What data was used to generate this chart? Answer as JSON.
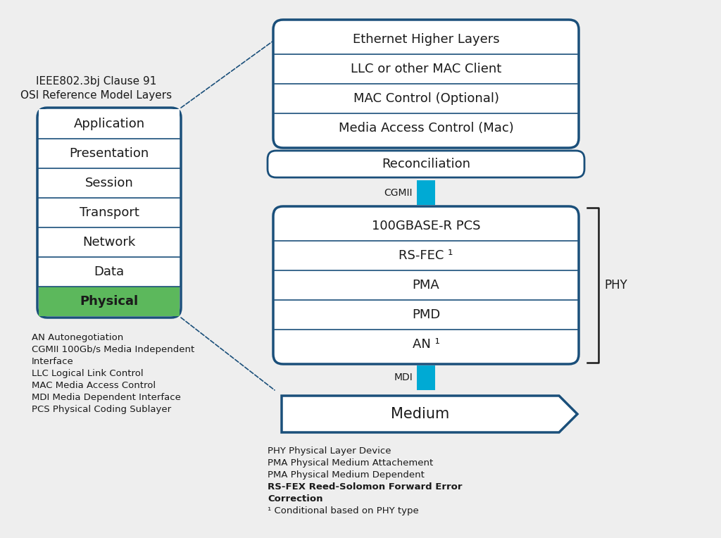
{
  "bg_color": "#eeeeee",
  "border_color": "#1a4f7a",
  "teal_color": "#00aad4",
  "green_color": "#5cb85c",
  "text_color": "#1a1a1a",
  "white": "#ffffff",
  "title_text": "IEEE802.3bj Clause 91\nOSI Reference Model Layers",
  "osi_layers_top_to_bottom": [
    "Application",
    "Presentation",
    "Session",
    "Transport",
    "Network",
    "Data",
    "Physical"
  ],
  "osi_layer_colors": [
    "#ffffff",
    "#ffffff",
    "#ffffff",
    "#ffffff",
    "#ffffff",
    "#ffffff",
    "#5cb85c"
  ],
  "top_box_layers_top_to_bottom": [
    "Ethernet Higher Layers",
    "LLC or other MAC Client",
    "MAC Control (Optional)",
    "Media Access Control (Mac)"
  ],
  "recon_label": "Reconciliation",
  "cgmii_label": "CGMII",
  "mdi_label": "MDI",
  "phy_inner_layers_top_to_bottom": [
    "100GBASE-R PCS",
    "RS-FEC ¹",
    "PMA",
    "PMD",
    "AN ¹"
  ],
  "phy_label": "PHY",
  "medium_label": "Medium",
  "left_footnote_lines": [
    "AN Autonegotiation",
    "CGMII 100Gb/s Media Independent",
    "Interface",
    "LLC Logical Link Control",
    "MAC Media Access Control",
    "MDI Media Dependent Interface",
    "PCS Physical Coding Sublayer"
  ],
  "right_footnote_lines_normal": [
    "PHY Physical Layer Device",
    "PMA Physical Medium Attachement",
    "PMA Physical Medium Dependent"
  ],
  "right_footnote_lines_bold": [
    "RS-FEX Reed-Solomon Forward Error",
    "Correction"
  ],
  "right_footnote_end": "¹ Conditional based on PHY type"
}
